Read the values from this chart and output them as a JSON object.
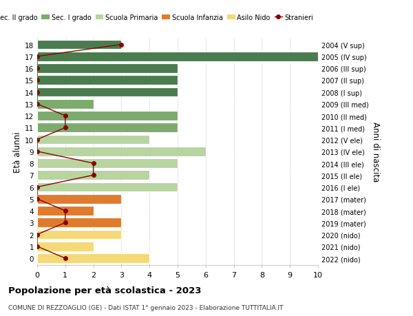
{
  "ages": [
    18,
    17,
    16,
    15,
    14,
    13,
    12,
    11,
    10,
    9,
    8,
    7,
    6,
    5,
    4,
    3,
    2,
    1,
    0
  ],
  "right_labels": [
    "2004 (V sup)",
    "2005 (IV sup)",
    "2006 (III sup)",
    "2007 (II sup)",
    "2008 (I sup)",
    "2009 (III med)",
    "2010 (II med)",
    "2011 (I med)",
    "2012 (V ele)",
    "2013 (IV ele)",
    "2014 (III ele)",
    "2015 (II ele)",
    "2016 (I ele)",
    "2017 (mater)",
    "2018 (mater)",
    "2019 (mater)",
    "2020 (nido)",
    "2021 (nido)",
    "2022 (nido)"
  ],
  "bar_values": [
    3,
    10,
    5,
    5,
    5,
    2,
    5,
    5,
    4,
    6,
    5,
    4,
    5,
    3,
    2,
    3,
    3,
    2,
    4
  ],
  "bar_colors": [
    "#4a7c4e",
    "#4a7c4e",
    "#4a7c4e",
    "#4a7c4e",
    "#4a7c4e",
    "#7dab6e",
    "#7dab6e",
    "#7dab6e",
    "#b8d4a0",
    "#b8d4a0",
    "#b8d4a0",
    "#b8d4a0",
    "#b8d4a0",
    "#e07b2e",
    "#e07b2e",
    "#e07b2e",
    "#f5d878",
    "#f5d878",
    "#f5d878"
  ],
  "stranieri_x": [
    3,
    0,
    0,
    0,
    0,
    0,
    1,
    1,
    0,
    0,
    2,
    2,
    0,
    0,
    1,
    1,
    0,
    0,
    1
  ],
  "legend_labels": [
    "Sec. II grado",
    "Sec. I grado",
    "Scuola Primaria",
    "Scuola Infanzia",
    "Asilo Nido",
    "Stranieri"
  ],
  "legend_colors": [
    "#4a7c4e",
    "#7dab6e",
    "#b8d4a0",
    "#e07b2e",
    "#f5d878",
    "#8b0000"
  ],
  "title": "Popolazione per età scolastica - 2023",
  "subtitle": "COMUNE DI REZZOAGLIO (GE) - Dati ISTAT 1° gennaio 2023 - Elaborazione TUTTITALIA.IT",
  "ylabel": "Età alunni",
  "right_ylabel": "Anni di nascita",
  "xlabel_values": [
    0,
    1,
    2,
    3,
    4,
    5,
    6,
    7,
    8,
    9,
    10
  ],
  "xlim": [
    0,
    10
  ],
  "bg_color": "#ffffff",
  "bar_edge_color": "#ffffff",
  "stranieri_color": "#8b0000",
  "stranieri_marker": "o",
  "stranieri_markersize": 4,
  "stranieri_linewidth": 1.0,
  "grid_color": "#cccccc"
}
